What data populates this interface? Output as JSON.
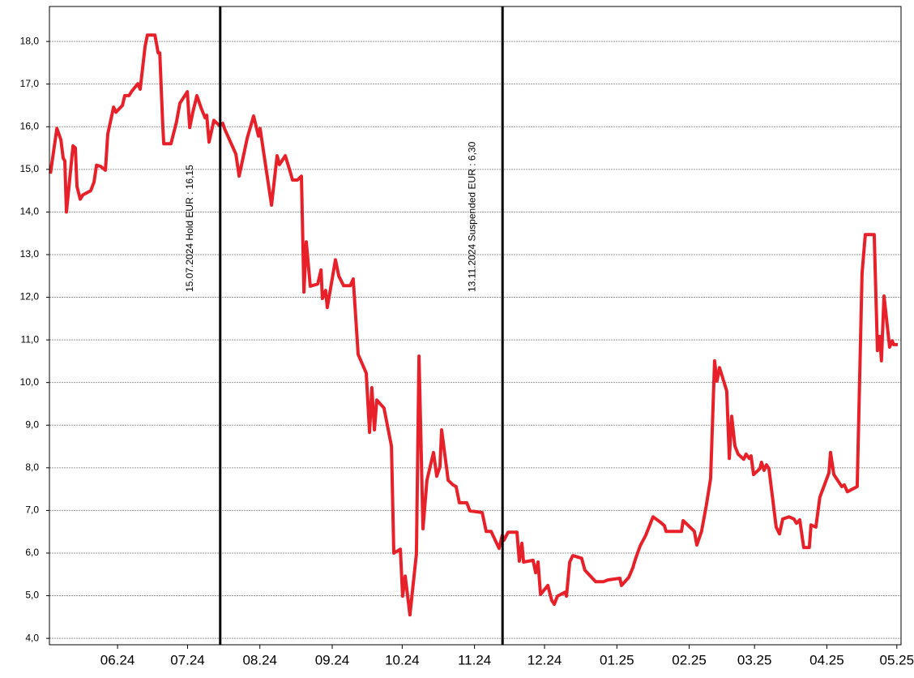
{
  "chart_data": {
    "type": "line",
    "xlim": [
      -29.2,
      335.8
    ],
    "xticks": [
      {
        "value": 0,
        "label": "06.24"
      },
      {
        "value": 30,
        "label": "07.24"
      },
      {
        "value": 61,
        "label": "08.24"
      },
      {
        "value": 92,
        "label": "09.24"
      },
      {
        "value": 122,
        "label": "10.24"
      },
      {
        "value": 153,
        "label": "11.24"
      },
      {
        "value": 183,
        "label": "12.24"
      },
      {
        "value": 214,
        "label": "01.25"
      },
      {
        "value": 245,
        "label": "02.25"
      },
      {
        "value": 273,
        "label": "03.25"
      },
      {
        "value": 304,
        "label": "04.25"
      },
      {
        "value": 334,
        "label": "05.25"
      }
    ],
    "ylim": [
      3.85,
      18.82
    ],
    "yticks": [
      {
        "value": 4,
        "label": "4,0"
      },
      {
        "value": 5,
        "label": "5,0"
      },
      {
        "value": 6,
        "label": "6,0"
      },
      {
        "value": 7,
        "label": "7,0"
      },
      {
        "value": 8,
        "label": "8,0"
      },
      {
        "value": 9,
        "label": "9,0"
      },
      {
        "value": 10,
        "label": "10,0"
      },
      {
        "value": 11,
        "label": "11,0"
      },
      {
        "value": 12,
        "label": "12,0"
      },
      {
        "value": 13,
        "label": "13,0"
      },
      {
        "value": 14,
        "label": "14,0"
      },
      {
        "value": 15,
        "label": "15,0"
      },
      {
        "value": 16,
        "label": "16,0"
      },
      {
        "value": 17,
        "label": "17,0"
      },
      {
        "value": 18,
        "label": "18,0"
      }
    ],
    "grid": true,
    "annotations": [
      {
        "x": 44,
        "text": "15.07.2024 Hold EUR : 16,15"
      },
      {
        "x": 165,
        "text": "13.11.2024 Suspended EUR : 6,30"
      }
    ],
    "x": [
      -28.8,
      -26,
      -24.3,
      -23.3,
      -22.6,
      -21.9,
      -19.1,
      -18.1,
      -17.4,
      -16,
      -14.9,
      -11.5,
      -10.1,
      -9,
      -7.3,
      -5.2,
      -4.2,
      -1.7,
      -0.7,
      2.1,
      3.1,
      4.9,
      6.2,
      8.7,
      9.7,
      11.8,
      12.8,
      16,
      17.4,
      18.1,
      19.4,
      19.8,
      22.9,
      25.3,
      26.7,
      29.9,
      30.9,
      32.3,
      34,
      35.8,
      37.5,
      38.2,
      39.2,
      41.3,
      43.8,
      45.1,
      45.8,
      50.7,
      52.1,
      55.6,
      58.3,
      60.4,
      61.1,
      66,
      68.4,
      69.4,
      71.9,
      74,
      75,
      77.1,
      78.8,
      79.9,
      80.9,
      82.6,
      85.8,
      87.2,
      87.8,
      89.2,
      89.9,
      93.4,
      94.8,
      96.9,
      99.7,
      101,
      103.1,
      106.6,
      108,
      109,
      110.1,
      111.1,
      114.2,
      117.4,
      118.4,
      121.2,
      122.2,
      123.3,
      125.3,
      128.1,
      129.2,
      130.9,
      132.6,
      135.4,
      136.8,
      138.2,
      138.9,
      141.7,
      143.8,
      145.1,
      146.5,
      149.7,
      151,
      156.3,
      158,
      160.1,
      163.5,
      164.9,
      165.6,
      167.4,
      171.2,
      172.2,
      173.3,
      174,
      178.1,
      179.2,
      180.2,
      181.3,
      184.4,
      186.1,
      187.2,
      188.5,
      191.7,
      192.4,
      193.8,
      195.1,
      198.9,
      200.3,
      204.9,
      208.3,
      210.1,
      215.3,
      216,
      219.1,
      220.8,
      221.9,
      224,
      226.4,
      229.5,
      232.3,
      234.4,
      235.1,
      241.7,
      242.4,
      244.4,
      247.2,
      248.3,
      250.3,
      252.4,
      254.2,
      255.9,
      256.9,
      258,
      261.1,
      262.2,
      263.2,
      264.6,
      266,
      268.4,
      269.4,
      270.8,
      271.5,
      272.6,
      275.3,
      276,
      277.1,
      278.1,
      279.2,
      282.3,
      283.7,
      285.1,
      287.8,
      289.9,
      291,
      292.4,
      294.1,
      296.5,
      297.2,
      299.3,
      301,
      304.9,
      305.6,
      307,
      310.4,
      311.5,
      312.8,
      317,
      319.1,
      320.5,
      324.3,
      325.7,
      326.7,
      327.4,
      328.5,
      330.9,
      332,
      332.6,
      334.4
    ],
    "series": [
      {
        "color": "#e8202a",
        "values": [
          14.9,
          15.96,
          15.7,
          15.26,
          15.2,
          14.0,
          15.55,
          15.5,
          14.6,
          14.3,
          14.4,
          14.5,
          14.7,
          15.1,
          15.07,
          14.98,
          15.83,
          16.46,
          16.34,
          16.5,
          16.73,
          16.73,
          16.84,
          17.01,
          16.88,
          17.89,
          18.15,
          18.15,
          17.73,
          17.73,
          16.02,
          15.6,
          15.6,
          16.12,
          16.55,
          16.82,
          15.98,
          16.35,
          16.73,
          16.44,
          16.21,
          16.27,
          15.64,
          16.15,
          16.02,
          16.08,
          15.96,
          15.36,
          14.84,
          15.74,
          16.25,
          15.78,
          15.96,
          14.16,
          15.32,
          15.11,
          15.32,
          14.94,
          14.75,
          14.75,
          14.84,
          12.12,
          13.3,
          12.26,
          12.31,
          12.64,
          11.97,
          12.16,
          11.76,
          12.88,
          12.5,
          12.27,
          12.27,
          12.43,
          10.66,
          10.22,
          8.83,
          9.88,
          8.89,
          9.59,
          9.4,
          8.51,
          6.0,
          6.09,
          4.99,
          5.46,
          4.55,
          5.98,
          10.62,
          6.57,
          7.71,
          8.36,
          7.8,
          8.03,
          8.89,
          7.71,
          7.6,
          7.56,
          7.18,
          7.18,
          6.99,
          6.95,
          6.51,
          6.51,
          6.11,
          6.42,
          6.3,
          6.49,
          6.49,
          5.81,
          6.23,
          5.79,
          5.83,
          5.54,
          5.79,
          5.03,
          5.24,
          4.89,
          4.8,
          4.99,
          5.08,
          4.99,
          5.79,
          5.94,
          5.88,
          5.6,
          5.33,
          5.33,
          5.37,
          5.41,
          5.24,
          5.43,
          5.65,
          5.85,
          6.17,
          6.42,
          6.85,
          6.74,
          6.64,
          6.51,
          6.51,
          6.76,
          6.66,
          6.51,
          6.19,
          6.51,
          7.14,
          7.75,
          10.51,
          10.03,
          10.35,
          9.8,
          8.22,
          9.21,
          8.51,
          8.32,
          8.2,
          8.32,
          8.22,
          8.28,
          7.84,
          7.98,
          8.13,
          7.94,
          8.07,
          7.98,
          6.61,
          6.45,
          6.8,
          6.85,
          6.8,
          6.7,
          6.78,
          6.13,
          6.13,
          6.66,
          6.61,
          7.31,
          7.88,
          8.36,
          7.84,
          7.56,
          7.6,
          7.44,
          7.56,
          12.56,
          13.47,
          13.47,
          10.75,
          11.08,
          10.51,
          12.03,
          10.83,
          10.98,
          10.89,
          10.89
        ]
      }
    ]
  }
}
